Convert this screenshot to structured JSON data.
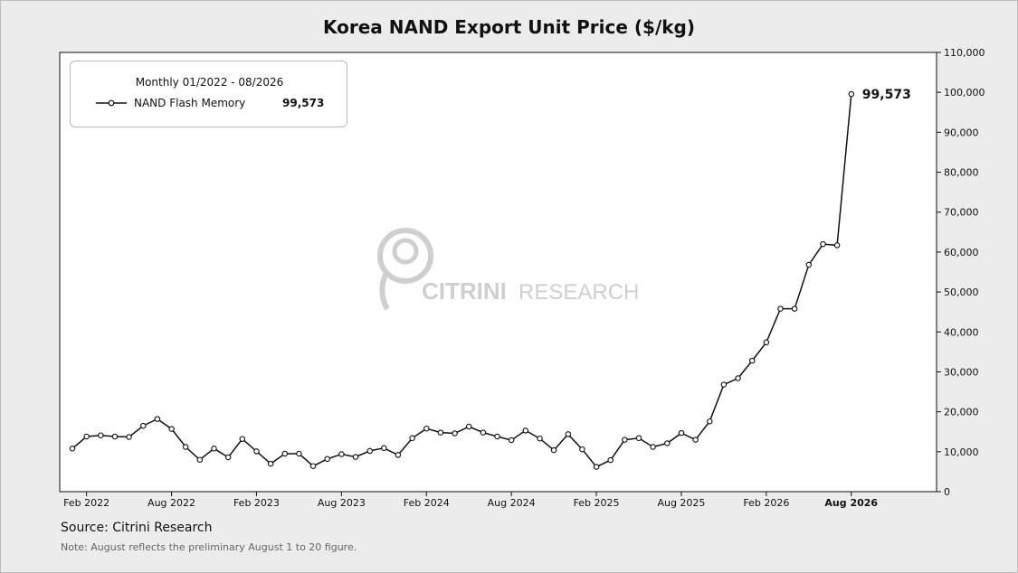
{
  "page": {
    "title": "Korea NAND Export Unit Price ($/kg)",
    "source": "Source: Citrini Research",
    "note": "Note: August reflects the preliminary August 1 to 20 figure.",
    "watermark": {
      "part1": "CITRINI",
      "part2": "RESEARCH"
    }
  },
  "legend": {
    "title": "Monthly 01/2022 - 08/2026",
    "series_name": "NAND Flash Memory",
    "last_value": "99,573"
  },
  "chart_data": {
    "type": "line",
    "title": "Korea NAND Export Unit Price ($/kg)",
    "ylabel": "",
    "xlabel": "",
    "ylim": [
      0,
      110000
    ],
    "y_axis_side": "right",
    "yticks": [
      0,
      10000,
      20000,
      30000,
      40000,
      50000,
      60000,
      70000,
      80000,
      90000,
      100000,
      110000
    ],
    "ytick_labels": [
      "0",
      "10,000",
      "20,000",
      "30,000",
      "40,000",
      "50,000",
      "60,000",
      "70,000",
      "80,000",
      "90,000",
      "100,000",
      "110,000"
    ],
    "xticks": [
      {
        "label": "Feb 2022",
        "index": 1,
        "bold": false
      },
      {
        "label": "Aug 2022",
        "index": 7,
        "bold": false
      },
      {
        "label": "Feb 2023",
        "index": 13,
        "bold": false
      },
      {
        "label": "Aug 2023",
        "index": 19,
        "bold": false
      },
      {
        "label": "Feb 2024",
        "index": 25,
        "bold": false
      },
      {
        "label": "Aug 2024",
        "index": 31,
        "bold": false
      },
      {
        "label": "Feb 2025",
        "index": 37,
        "bold": false
      },
      {
        "label": "Aug 2025",
        "index": 43,
        "bold": false
      },
      {
        "label": "Feb 2026",
        "index": 49,
        "bold": false
      },
      {
        "label": "Aug 2026",
        "index": 55,
        "bold": true
      }
    ],
    "grid": false,
    "legend_position": "top-left",
    "series": [
      {
        "name": "NAND Flash Memory",
        "color": "#111111",
        "marker": "open-circle",
        "start_month": "2022-01",
        "end_month": "2026-08",
        "values": [
          10800,
          13800,
          14100,
          13800,
          13700,
          16500,
          18200,
          15700,
          11200,
          8000,
          10800,
          8600,
          13200,
          10100,
          7000,
          9500,
          9500,
          6400,
          8200,
          9400,
          8700,
          10200,
          10900,
          9200,
          13400,
          15800,
          14800,
          14600,
          16300,
          14800,
          13800,
          12900,
          15300,
          13300,
          10400,
          14400,
          10600,
          6200,
          7900,
          13000,
          13400,
          11200,
          12100,
          14700,
          13000,
          17600,
          26800,
          28400,
          32800,
          37400,
          45800,
          45800,
          56800,
          62000,
          61700,
          99573
        ]
      }
    ],
    "annotations": [
      {
        "text": "99,573",
        "x_index": 55,
        "y": 99573
      }
    ]
  },
  "colors": {
    "line": "#111111",
    "background": "#ececec",
    "plot_bg": "#ffffff",
    "watermark": "#cfcfcf"
  }
}
